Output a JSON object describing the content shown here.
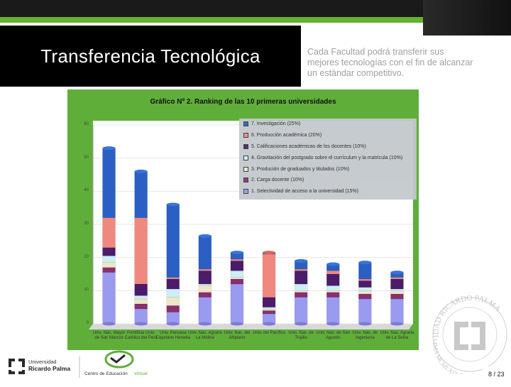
{
  "slide": {
    "title": "Transferencia Tecnológica",
    "intro": "Cada Facultad podrá transferir sus mejores tecnologías con el fin de alcanzar un estándar competitivo.",
    "page_number": "8 / 23"
  },
  "logos": {
    "university_line1": "Universidad",
    "university_line2": "Ricardo Palma",
    "center_line1": "Centro de Educación",
    "center_line2": "Virtual",
    "seal_top": "IDAD RICARDO PALMA",
    "seal_bottom": "LIMA MCMLXIX PERÚ"
  },
  "colors": {
    "frame_green": "#5fae39",
    "plot_bg": "#ffffff",
    "legend_bg": "#c2c8cc"
  },
  "chart_data": {
    "type": "bar",
    "stacked": true,
    "title": "Gráfico Nº 2. Ranking de las 10 primeras universidades",
    "ylim": [
      0,
      60
    ],
    "yticks": [
      "0",
      "10",
      "20",
      "30",
      "40",
      "50",
      "60"
    ],
    "grid": true,
    "legend_position": "top-right",
    "categories": [
      "Univ. Nac. Mayor de San Marcos",
      "Pontificia Univ. Católica del Perú",
      "Univ. Peruana Cayetano Heredia",
      "Univ. Nac. Agraria La Molina",
      "Univ. Nac. del Altiplano",
      "Univ. del Pacífico",
      "Univ. Nac. de Trujillo",
      "Univ. Nac. de San Agustín",
      "Univ. Nac. de Ingeniería",
      "Univ. Nac. Agraria de La Selva"
    ],
    "series": [
      {
        "name": "1. Selectividad de acceso a la universidad (15%)",
        "color": "#9a9af0",
        "values": [
          15.5,
          4.5,
          3.5,
          8,
          12,
          3,
          8,
          8,
          7.5,
          7.5
        ]
      },
      {
        "name": "2. Carga docente (10%)",
        "color": "#8a2f6e",
        "values": [
          1.5,
          1.5,
          2,
          1.5,
          1.5,
          1,
          1.5,
          1.5,
          1.5,
          1.5
        ]
      },
      {
        "name": "3. Produción de graduados y titulados (10%)",
        "color": "#ede6c8",
        "values": [
          1.5,
          1.5,
          2.5,
          2,
          0.5,
          0.5,
          0.5,
          0.5,
          1,
          1
        ]
      },
      {
        "name": "4. Gravitación del postgrado sobre el currículum y la matrícula (10%)",
        "color": "#cdeef4",
        "values": [
          2,
          1,
          2.5,
          0.5,
          2,
          0.5,
          2,
          1.5,
          1,
          0.5
        ]
      },
      {
        "name": "5. Calificaciones académicas de los docentes (10%)",
        "color": "#4a1c6a",
        "values": [
          2.5,
          3.5,
          3,
          4,
          3,
          3,
          4,
          3.5,
          2,
          3
        ]
      },
      {
        "name": "6. Producción académica (20%)",
        "color": "#f08880",
        "values": [
          9,
          20,
          0.5,
          0.5,
          0.5,
          13,
          0.5,
          1,
          0.5,
          0.5
        ]
      },
      {
        "name": "7. Investigación (25%)",
        "color": "#2a5fc4",
        "values": [
          21,
          14,
          22,
          10,
          2,
          0.5,
          2.5,
          2,
          5,
          1.5
        ]
      }
    ]
  }
}
